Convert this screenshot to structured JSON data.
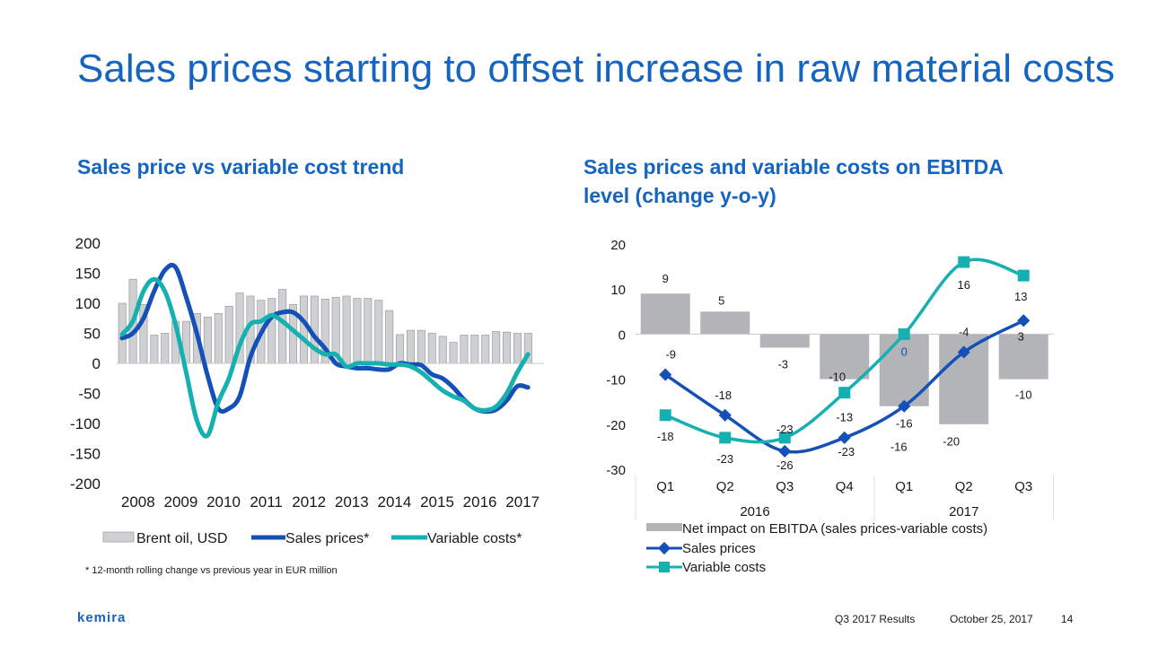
{
  "title": "Sales prices starting to offset increase in raw material costs",
  "left_subtitle": "Sales price vs variable cost trend",
  "right_subtitle": "Sales prices and variable costs on EBITDA level (change y-o-y)",
  "footnote": "* 12-month rolling change vs previous year in EUR million",
  "logo_text": "kemira",
  "footer": {
    "results": "Q3 2017 Results",
    "date": "October 25, 2017",
    "page": "14"
  },
  "colors": {
    "title": "#1565c0",
    "bars": "#b3b4b7",
    "sales": "#1550b8",
    "variable": "#17b0b0"
  },
  "chart_data": [
    {
      "type": "bar+line",
      "title": "Sales price vs variable cost trend",
      "ylim": [
        -200,
        200
      ],
      "yticks": [
        200,
        150,
        100,
        50,
        0,
        -50,
        -100,
        -150,
        -200
      ],
      "xlim": [
        2008,
        2018
      ],
      "xticks": [
        "2008",
        "2009",
        "2010",
        "2011",
        "2012",
        "2013",
        "2014",
        "2015",
        "2016",
        "2017"
      ],
      "legend": [
        "Brent oil, USD",
        "Sales prices*",
        "Variable costs*"
      ],
      "legend_position": "bottom",
      "bars": {
        "name": "Brent oil, USD",
        "x": [
          2008.0,
          2008.25,
          2008.5,
          2008.75,
          2009.0,
          2009.25,
          2009.5,
          2009.75,
          2010.0,
          2010.25,
          2010.5,
          2010.75,
          2011.0,
          2011.25,
          2011.5,
          2011.75,
          2012.0,
          2012.25,
          2012.5,
          2012.75,
          2013.0,
          2013.25,
          2013.5,
          2013.75,
          2014.0,
          2014.25,
          2014.5,
          2014.75,
          2015.0,
          2015.25,
          2015.5,
          2015.75,
          2016.0,
          2016.25,
          2016.5,
          2016.75,
          2017.0,
          2017.25,
          2017.5
        ],
        "values": [
          100,
          140,
          98,
          47,
          50,
          70,
          70,
          83,
          77,
          83,
          95,
          117,
          112,
          105,
          108,
          123,
          98,
          112,
          112,
          107,
          110,
          112,
          108,
          108,
          105,
          88,
          48,
          55,
          55,
          50,
          45,
          35,
          47,
          47,
          47,
          53,
          52,
          50,
          50
        ]
      },
      "series": [
        {
          "name": "Sales prices*",
          "x": [
            2008.0,
            2008.25,
            2008.5,
            2008.75,
            2009.0,
            2009.25,
            2009.5,
            2009.75,
            2010.0,
            2010.25,
            2010.5,
            2010.75,
            2011.0,
            2011.25,
            2011.5,
            2011.75,
            2012.0,
            2012.25,
            2012.5,
            2012.75,
            2013.0,
            2013.25,
            2013.5,
            2013.75,
            2014.0,
            2014.25,
            2014.5,
            2014.75,
            2015.0,
            2015.25,
            2015.5,
            2015.75,
            2016.0,
            2016.25,
            2016.5,
            2016.75,
            2017.0,
            2017.25,
            2017.5
          ],
          "values": [
            42,
            50,
            75,
            120,
            155,
            160,
            110,
            50,
            -20,
            -75,
            -75,
            -55,
            10,
            50,
            77,
            85,
            85,
            70,
            45,
            25,
            0,
            -5,
            -8,
            -8,
            -10,
            -10,
            0,
            -2,
            -3,
            -18,
            -25,
            -40,
            -60,
            -75,
            -80,
            -77,
            -62,
            -38,
            -40
          ]
        },
        {
          "name": "Variable costs*",
          "x": [
            2008.0,
            2008.25,
            2008.5,
            2008.75,
            2009.0,
            2009.25,
            2009.5,
            2009.75,
            2010.0,
            2010.25,
            2010.5,
            2010.75,
            2011.0,
            2011.25,
            2011.5,
            2011.75,
            2012.0,
            2012.25,
            2012.5,
            2012.75,
            2013.0,
            2013.25,
            2013.5,
            2013.75,
            2014.0,
            2014.25,
            2014.5,
            2014.75,
            2015.0,
            2015.25,
            2015.5,
            2015.75,
            2016.0,
            2016.25,
            2016.5,
            2016.75,
            2017.0,
            2017.25,
            2017.5
          ],
          "values": [
            48,
            70,
            120,
            140,
            120,
            65,
            -15,
            -95,
            -120,
            -65,
            -25,
            30,
            65,
            70,
            80,
            70,
            55,
            40,
            25,
            15,
            15,
            -5,
            0,
            0,
            0,
            -2,
            -2,
            -5,
            -15,
            -30,
            -45,
            -55,
            -62,
            -75,
            -78,
            -72,
            -50,
            -15,
            15
          ]
        }
      ]
    },
    {
      "type": "bar+line",
      "title": "Sales prices and variable costs on EBITDA level (change y-o-y)",
      "ylim": [
        -30,
        20
      ],
      "yticks": [
        20,
        10,
        0,
        -10,
        -20,
        -30
      ],
      "categories": [
        "Q1",
        "Q2",
        "Q3",
        "Q4",
        "Q1",
        "Q2",
        "Q3"
      ],
      "year_groups": [
        {
          "label": "2016",
          "span": 4
        },
        {
          "label": "2017",
          "span": 3
        }
      ],
      "legend": [
        "Net impact on EBITDA (sales prices-variable costs)",
        "Sales prices",
        "Variable costs"
      ],
      "legend_position": "bottom",
      "bars": {
        "name": "Net impact on EBITDA (sales prices-variable costs)",
        "values": [
          9,
          5,
          -3,
          -10,
          -16,
          -20,
          -10
        ]
      },
      "series": [
        {
          "name": "Sales prices",
          "values": [
            -9,
            -18,
            -26,
            -23,
            -16,
            -4,
            3
          ]
        },
        {
          "name": "Variable costs",
          "values": [
            -18,
            -23,
            -23,
            -13,
            0,
            16,
            13
          ]
        }
      ]
    }
  ]
}
